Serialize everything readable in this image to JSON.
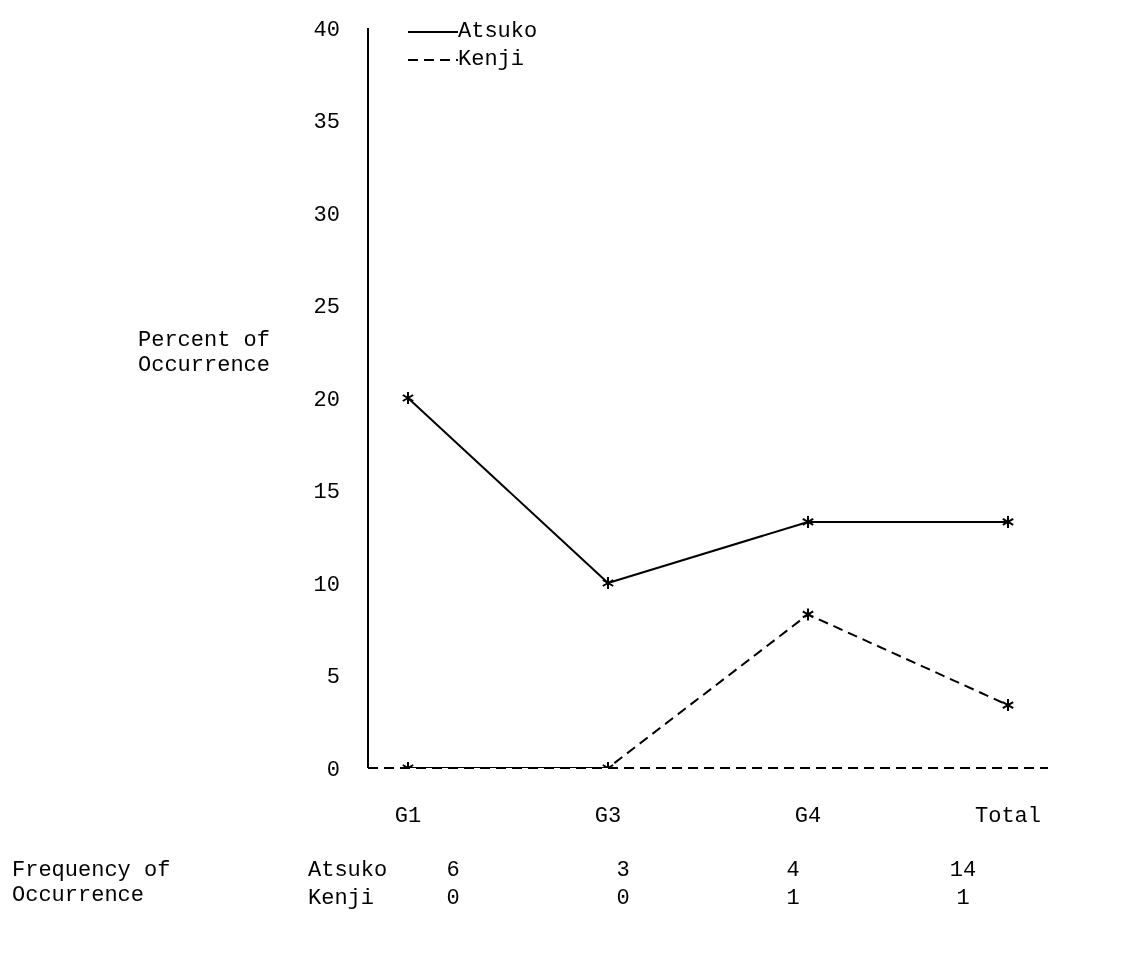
{
  "chart_data": {
    "type": "line",
    "ylabel": "Percent of Occurrence",
    "categories": [
      "G1",
      "G3",
      "G4",
      "Total"
    ],
    "series": [
      {
        "name": "Atsuko",
        "color": "#000000",
        "values": [
          20,
          10,
          13.3,
          13.3
        ],
        "line_style": "solid"
      },
      {
        "name": "Kenji",
        "color": "#000000",
        "values": [
          0,
          0,
          8.3,
          3.4
        ],
        "line_style": "dashed"
      }
    ],
    "ylim": [
      0,
      40
    ],
    "yticks": [
      0,
      5,
      10,
      15,
      20,
      25,
      30,
      35,
      40
    ],
    "grid": false,
    "legend": "top left",
    "marker": "cross",
    "annotations": [
      "Frequency of Occurrence",
      "Atsuko 6 3 4 14",
      "Kenji 0 0 1 1"
    ]
  }
}
